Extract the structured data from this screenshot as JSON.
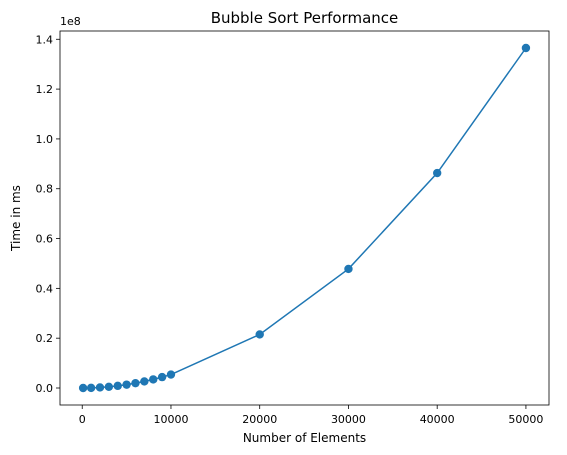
{
  "chart_data": {
    "type": "line",
    "title": "Bubble Sort Performance",
    "xlabel": "Number of Elements",
    "ylabel": "Time in ms",
    "y_multiplier_label": "1e8",
    "x": [
      100,
      1000,
      2000,
      3000,
      4000,
      5000,
      6000,
      7000,
      8000,
      9000,
      10000,
      20000,
      30000,
      40000,
      50000
    ],
    "series": [
      {
        "color": "#1f77b4",
        "values": [
          0,
          54000,
          216000,
          486000,
          864000,
          1350000,
          1944000,
          2646000,
          3456000,
          4374000,
          5400000,
          21500000,
          47800000,
          86300000,
          136500000
        ]
      }
    ],
    "xlim": [
      -2505,
      52600
    ],
    "ylim": [
      -6825000,
      143325000
    ],
    "xticks": [
      0,
      10000,
      20000,
      30000,
      40000,
      50000
    ],
    "xtick_labels": [
      "0",
      "10000",
      "20000",
      "30000",
      "40000",
      "50000"
    ],
    "yticks": [
      0,
      20000000,
      40000000,
      60000000,
      80000000,
      100000000,
      120000000,
      140000000
    ],
    "ytick_labels": [
      "0.0",
      "0.2",
      "0.4",
      "0.6",
      "0.8",
      "1.0",
      "1.2",
      "1.4"
    ],
    "grid": false,
    "markers": "circle"
  }
}
